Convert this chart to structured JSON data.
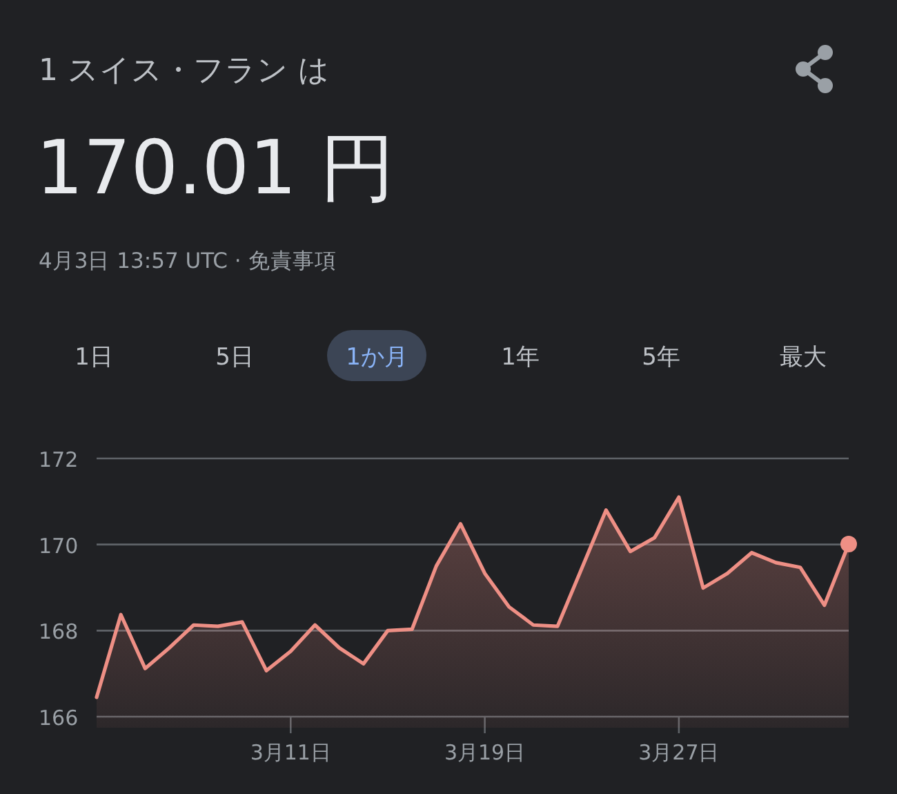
{
  "chart_data": {
    "type": "area",
    "title": "1 スイス・フラン は",
    "subtitle": "170.01 円",
    "annotations": [
      "4月3日 13:57 UTC · 免責事項",
      "1日",
      "5日",
      "1か月",
      "1年",
      "5年",
      "最大"
    ],
    "x": [
      "--03-03",
      "--03-04",
      "--03-05",
      "--03-06",
      "--03-07",
      "--03-08",
      "--03-09",
      "--03-10",
      "--03-11",
      "--03-12",
      "--03-13",
      "--03-14",
      "--03-15",
      "--03-16",
      "--03-17",
      "--03-18",
      "--03-19",
      "--03-20",
      "--03-21",
      "--03-22",
      "--03-23",
      "--03-24",
      "--03-25",
      "--03-26",
      "--03-27",
      "--03-28",
      "--03-29",
      "--03-30",
      "--03-31",
      "--04-01",
      "--04-02",
      "--04-03"
    ],
    "series": [
      {
        "color": "#ee8f85",
        "values": [
          166.45,
          168.37,
          167.12,
          167.6,
          168.13,
          168.1,
          168.2,
          167.07,
          167.52,
          168.13,
          167.6,
          167.23,
          168.0,
          168.03,
          169.5,
          170.48,
          169.33,
          168.55,
          168.13,
          168.1,
          169.45,
          170.8,
          169.84,
          170.16,
          171.1,
          168.99,
          169.33,
          169.81,
          169.58,
          169.47,
          168.59,
          170.01
        ]
      }
    ],
    "xlim": [
      "--03-03",
      "--04-03"
    ],
    "xticks": [
      {
        "value": "--03-11",
        "label": "3月11日"
      },
      {
        "value": "--03-19",
        "label": "3月19日"
      },
      {
        "value": "--03-27",
        "label": "3月27日"
      }
    ],
    "ylim": [
      166,
      172
    ],
    "yticks": [
      166,
      168,
      170,
      172
    ],
    "grid": "y",
    "marker": "none",
    "line_style": "solid"
  }
}
